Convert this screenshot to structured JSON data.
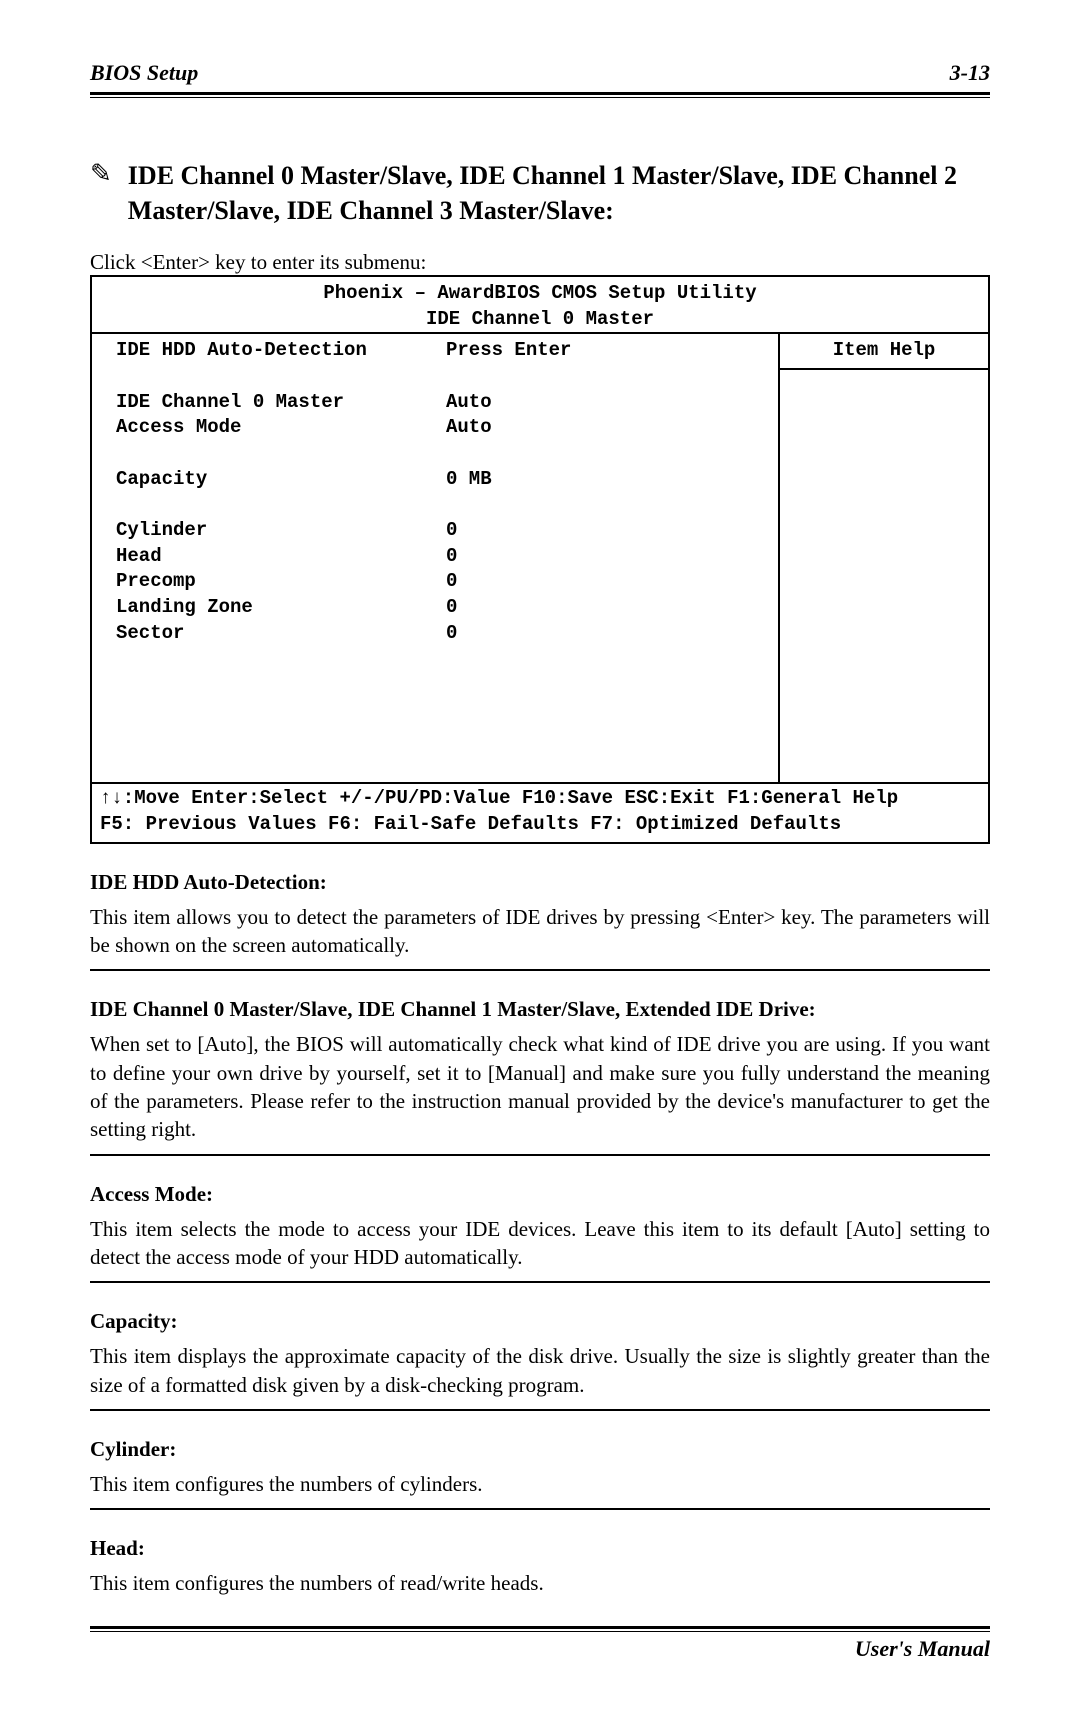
{
  "header": {
    "left": "BIOS Setup",
    "right": "3-13"
  },
  "section": {
    "pointer": "✎",
    "title": "IDE Channel 0 Master/Slave, IDE Channel 1 Master/Slave, IDE Channel 2 Master/Slave, IDE Channel 3 Master/Slave:",
    "hint": "Click <Enter> key to enter its submenu:"
  },
  "bios": {
    "utility_line": "Phoenix – AwardBIOS CMOS Setup Utility",
    "screen_title": "IDE Channel 0 Master",
    "help_title": "Item Help",
    "rows": [
      {
        "label": "IDE HDD Auto-Detection",
        "value": "Press Enter"
      },
      {
        "spacer": true
      },
      {
        "label": "IDE Channel 0 Master",
        "value": "Auto"
      },
      {
        "label": "Access Mode",
        "value": "Auto"
      },
      {
        "spacer": true
      },
      {
        "label": "Capacity",
        "value": "0 MB"
      },
      {
        "spacer": true
      },
      {
        "label": "Cylinder",
        "value": "0"
      },
      {
        "label": "Head",
        "value": "0"
      },
      {
        "label": "Precomp",
        "value": "0"
      },
      {
        "label": "Landing Zone",
        "value": "0"
      },
      {
        "label": "Sector",
        "value": "0"
      },
      {
        "spacer": true
      },
      {
        "spacer": true
      },
      {
        "spacer": true
      },
      {
        "spacer": true
      },
      {
        "spacer": true
      }
    ],
    "foot1": "↑↓:Move Enter:Select +/-/PU/PD:Value F10:Save ESC:Exit F1:General Help",
    "foot2": "F5: Previous Values   F6: Fail-Safe Defaults   F7: Optimized Defaults"
  },
  "descriptions": [
    {
      "title": "IDE HDD Auto-Detection:",
      "text": "This item allows you to detect the parameters of IDE drives by pressing <Enter> key. The parameters will be shown on the screen automatically."
    },
    {
      "title": "IDE Channel 0 Master/Slave, IDE Channel 1 Master/Slave, Extended IDE Drive:",
      "text": "When set to [Auto], the BIOS will automatically check what kind of IDE drive you are using. If you want to define your own drive by yourself, set it to [Manual] and make sure you fully understand the meaning of the parameters. Please refer to the instruction manual provided by the device's manufacturer to get the setting right."
    },
    {
      "title": "Access Mode:",
      "text": "This item selects the mode to access your IDE devices. Leave this item to its default [Auto] setting to detect the access mode of your HDD automatically."
    },
    {
      "title": "Capacity:",
      "text": "This item displays the approximate capacity of the disk drive. Usually the size is slightly greater than the size of a formatted disk given by a disk-checking program."
    },
    {
      "title": "Cylinder:",
      "text": "This item configures the numbers of cylinders."
    },
    {
      "title": "Head:",
      "text": "This item configures the numbers of read/write heads."
    }
  ],
  "footer": {
    "text": "User's Manual"
  }
}
